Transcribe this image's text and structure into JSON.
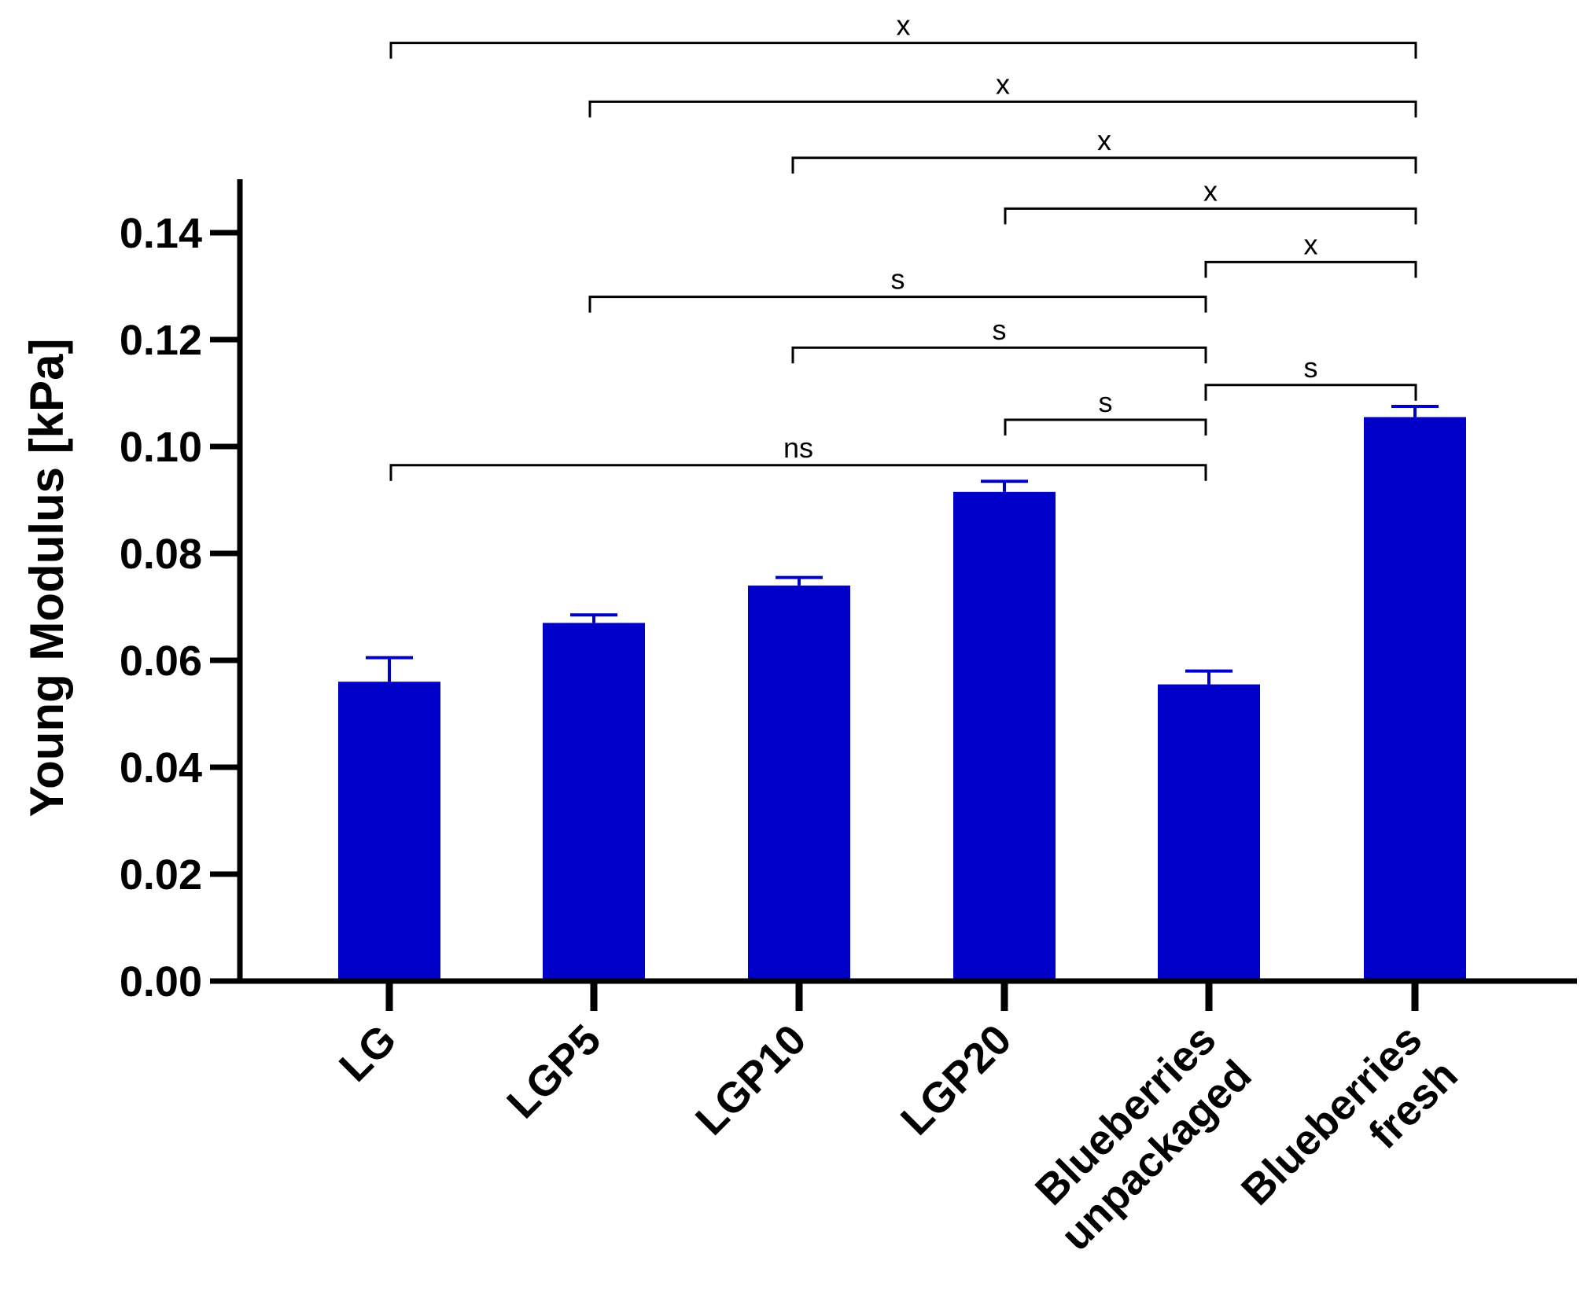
{
  "chart_data": {
    "type": "bar",
    "title": "",
    "xlabel": "",
    "ylabel": "Young Modulus [kPa]",
    "ylim": [
      0,
      0.15
    ],
    "yticks": [
      "0.00",
      "0.02",
      "0.04",
      "0.06",
      "0.08",
      "0.10",
      "0.12",
      "0.14"
    ],
    "ytick_values": [
      0,
      0.02,
      0.04,
      0.06,
      0.08,
      0.1,
      0.12,
      0.14
    ],
    "categories": [
      [
        "LG"
      ],
      [
        "LGP5"
      ],
      [
        "LGP10"
      ],
      [
        "LGP20"
      ],
      [
        "Blueberries",
        "unpackaged"
      ],
      [
        "Blueberries",
        "fresh"
      ]
    ],
    "values": [
      0.056,
      0.067,
      0.074,
      0.0915,
      0.0555,
      0.1055
    ],
    "errors": [
      0.0045,
      0.0015,
      0.0015,
      0.002,
      0.0025,
      0.002
    ],
    "bar_color": "#0000C8",
    "error_color": "#0000C8",
    "grid": false,
    "comparisons": [
      {
        "from": 0,
        "to": 5,
        "label": "x",
        "level": 0.1755
      },
      {
        "from": 1,
        "to": 5,
        "label": "x",
        "level": 0.1645
      },
      {
        "from": 2,
        "to": 5,
        "label": "x",
        "level": 0.154
      },
      {
        "from": 3,
        "to": 5,
        "label": "x",
        "level": 0.1445
      },
      {
        "from": 4,
        "to": 5,
        "label": "x",
        "level": 0.1345
      },
      {
        "from": 1,
        "to": 4,
        "label": "s",
        "level": 0.128
      },
      {
        "from": 2,
        "to": 4,
        "label": "s",
        "level": 0.1185
      },
      {
        "from": 4,
        "to": 5,
        "label": "s",
        "level": 0.1115
      },
      {
        "from": 3,
        "to": 4,
        "label": "s",
        "level": 0.105
      },
      {
        "from": 0,
        "to": 4,
        "label": "ns",
        "level": 0.0965
      }
    ]
  }
}
